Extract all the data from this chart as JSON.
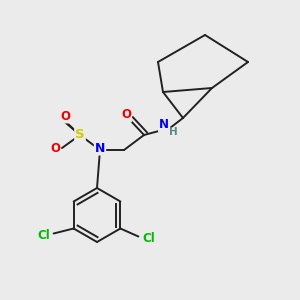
{
  "bg_color": "#ebebeb",
  "bond_color": "#222222",
  "bond_lw": 1.4,
  "atom_colors": {
    "S": "#cccc00",
    "N": "#0000ee",
    "O": "#ee0000",
    "Cl": "#00bb00",
    "H": "#5a8a8a",
    "C": "#222222"
  },
  "figsize": [
    3.0,
    3.0
  ],
  "dpi": 100
}
